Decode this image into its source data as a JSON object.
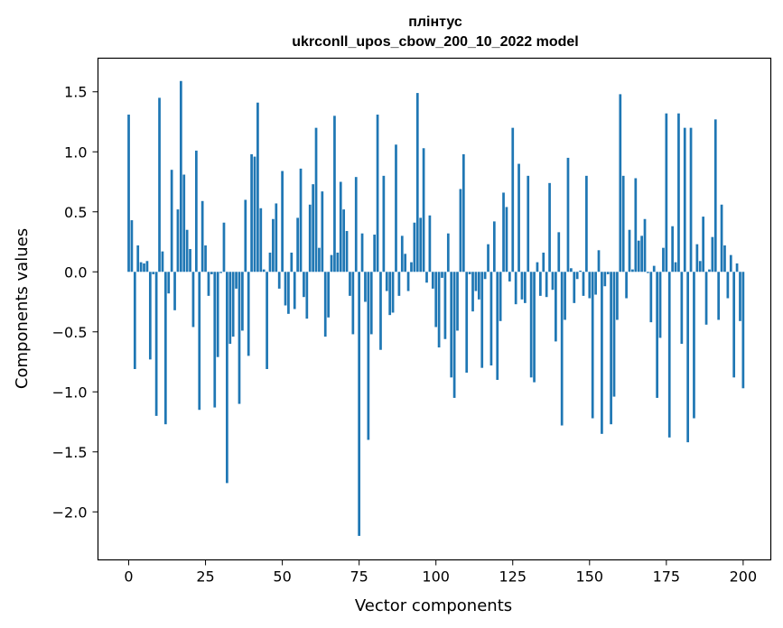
{
  "chart_data": {
    "type": "bar",
    "title": "плінтус",
    "subtitle": "ukrconll_upos_cbow_200_10_2022 model",
    "xlabel": "Vector components",
    "ylabel": "Components values",
    "xlim": [
      -10,
      209
    ],
    "ylim": [
      -2.4,
      1.78
    ],
    "xticks": [
      0,
      25,
      50,
      75,
      100,
      125,
      150,
      175,
      200
    ],
    "yticks": [
      -2.0,
      -1.5,
      -1.0,
      -0.5,
      0.0,
      0.5,
      1.0,
      1.5
    ],
    "ytick_labels": [
      "−2.0",
      "−1.5",
      "−1.0",
      "−0.5",
      "0.0",
      "0.5",
      "1.0",
      "1.5"
    ],
    "grid": false,
    "bar_color": "#1f77b4",
    "series": [
      {
        "values": [
          1.31,
          0.43,
          -0.81,
          0.22,
          0.08,
          0.07,
          0.09,
          -0.73,
          -0.02,
          -1.2,
          1.45,
          0.17,
          -1.27,
          -0.18,
          0.85,
          -0.32,
          0.52,
          1.59,
          0.81,
          0.35,
          0.19,
          -0.46,
          1.01,
          -1.15,
          0.59,
          0.22,
          -0.2,
          -0.02,
          -1.13,
          -0.71,
          -0.01,
          0.41,
          -1.76,
          -0.6,
          -0.54,
          -0.14,
          -1.1,
          -0.49,
          0.6,
          -0.7,
          0.98,
          0.96,
          1.41,
          0.53,
          0.02,
          -0.81,
          0.16,
          0.44,
          0.57,
          -0.14,
          0.84,
          -0.28,
          -0.35,
          0.16,
          -0.31,
          0.45,
          0.86,
          -0.21,
          -0.39,
          0.56,
          0.73,
          1.2,
          0.2,
          0.67,
          -0.54,
          -0.38,
          0.14,
          1.3,
          0.16,
          0.75,
          0.52,
          0.34,
          -0.2,
          -0.52,
          0.79,
          -2.2,
          0.32,
          -0.25,
          -1.4,
          -0.52,
          0.31,
          1.31,
          -0.65,
          0.8,
          -0.16,
          -0.36,
          -0.34,
          1.06,
          -0.2,
          0.3,
          0.15,
          -0.16,
          0.08,
          0.41,
          1.49,
          0.45,
          1.03,
          -0.09,
          0.47,
          -0.14,
          -0.46,
          -0.63,
          -0.05,
          -0.56,
          0.32,
          -0.88,
          -1.05,
          -0.49,
          0.69,
          0.98,
          -0.84,
          -0.02,
          -0.33,
          -0.16,
          -0.23,
          -0.8,
          -0.06,
          0.23,
          -0.78,
          0.42,
          -0.9,
          -0.41,
          0.66,
          0.54,
          -0.08,
          1.2,
          -0.27,
          0.9,
          -0.23,
          -0.26,
          0.8,
          -0.88,
          -0.92,
          0.08,
          -0.2,
          0.16,
          -0.21,
          0.74,
          -0.15,
          -0.58,
          0.33,
          -1.28,
          -0.4,
          0.95,
          0.03,
          -0.26,
          -0.06,
          0.01,
          -0.2,
          0.8,
          -0.22,
          -1.22,
          -0.19,
          0.18,
          -1.35,
          -0.12,
          -0.02,
          -1.27,
          -1.04,
          -0.4,
          1.48,
          0.8,
          -0.22,
          0.35,
          0.02,
          0.78,
          0.26,
          0.3,
          0.44,
          -0.01,
          -0.42,
          0.05,
          -1.05,
          -0.55,
          0.2,
          1.32,
          -1.38,
          0.38,
          0.08,
          1.32,
          -0.6,
          1.2,
          -1.42,
          1.2,
          -1.22,
          0.23,
          0.09,
          0.46,
          -0.44,
          0.02,
          0.29,
          1.27,
          -0.4,
          0.56,
          0.22,
          -0.22,
          0.14,
          -0.88,
          0.07,
          -0.41,
          -0.97
        ]
      }
    ]
  }
}
